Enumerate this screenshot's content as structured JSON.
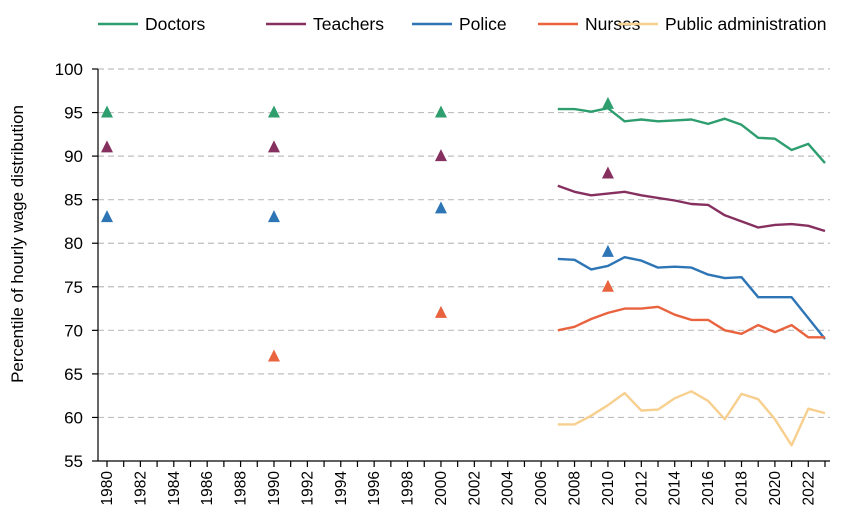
{
  "chart_data": {
    "type": "line",
    "title": "",
    "xlabel": "",
    "ylabel": "Percentile of hourly wage distribution",
    "xlim": [
      1980,
      2023
    ],
    "ylim": [
      55,
      100
    ],
    "y_ticks": [
      55,
      60,
      65,
      70,
      75,
      80,
      85,
      90,
      95,
      100
    ],
    "x_ticks": [
      1980,
      1982,
      1984,
      1986,
      1988,
      1990,
      1992,
      1994,
      1996,
      1998,
      2000,
      2002,
      2004,
      2006,
      2008,
      2010,
      2012,
      2014,
      2016,
      2018,
      2020,
      2022
    ],
    "grid": "horizontal dashed",
    "legend_position": "top",
    "series": [
      {
        "name": "Doctors",
        "color": "#2e9e6f",
        "x": [
          2007,
          2008,
          2009,
          2010,
          2011,
          2012,
          2013,
          2014,
          2015,
          2016,
          2017,
          2018,
          2019,
          2020,
          2021,
          2022,
          2023
        ],
        "y": [
          95.4,
          95.4,
          95.1,
          95.5,
          94.0,
          94.2,
          94.0,
          94.1,
          94.2,
          93.7,
          94.3,
          93.6,
          92.1,
          92.0,
          90.7,
          91.4,
          89.2
        ],
        "markers": [
          {
            "x": 1980,
            "y": 95
          },
          {
            "x": 1990,
            "y": 95
          },
          {
            "x": 2000,
            "y": 95
          },
          {
            "x": 2010,
            "y": 96
          }
        ]
      },
      {
        "name": "Teachers",
        "color": "#86305f",
        "x": [
          2007,
          2008,
          2009,
          2010,
          2011,
          2012,
          2013,
          2014,
          2015,
          2016,
          2017,
          2018,
          2019,
          2020,
          2021,
          2022,
          2023
        ],
        "y": [
          86.6,
          85.9,
          85.5,
          85.7,
          85.9,
          85.5,
          85.2,
          84.9,
          84.5,
          84.4,
          83.2,
          82.5,
          81.8,
          82.1,
          82.2,
          82.0,
          81.4
        ],
        "markers": [
          {
            "x": 1980,
            "y": 91
          },
          {
            "x": 1990,
            "y": 91
          },
          {
            "x": 2000,
            "y": 90
          },
          {
            "x": 2010,
            "y": 88
          }
        ]
      },
      {
        "name": "Police",
        "color": "#2e75b6",
        "x": [
          2007,
          2008,
          2009,
          2010,
          2011,
          2012,
          2013,
          2014,
          2015,
          2016,
          2017,
          2018,
          2019,
          2020,
          2021,
          2022,
          2023
        ],
        "y": [
          78.2,
          78.1,
          77.0,
          77.4,
          78.4,
          78.0,
          77.2,
          77.3,
          77.2,
          76.4,
          76.0,
          76.1,
          73.8,
          73.8,
          73.8,
          71.4,
          69.0
        ],
        "markers": [
          {
            "x": 1980,
            "y": 83
          },
          {
            "x": 1990,
            "y": 83
          },
          {
            "x": 2000,
            "y": 84
          },
          {
            "x": 2010,
            "y": 79
          }
        ]
      },
      {
        "name": "Nurses",
        "color": "#e9633f",
        "x": [
          2007,
          2008,
          2009,
          2010,
          2011,
          2012,
          2013,
          2014,
          2015,
          2016,
          2017,
          2018,
          2019,
          2020,
          2021,
          2022,
          2023
        ],
        "y": [
          70.0,
          70.4,
          71.3,
          72.0,
          72.5,
          72.5,
          72.7,
          71.8,
          71.2,
          71.2,
          70.0,
          69.6,
          70.6,
          69.8,
          70.6,
          69.2,
          69.2
        ],
        "markers": [
          {
            "x": 1990,
            "y": 67
          },
          {
            "x": 2000,
            "y": 72
          },
          {
            "x": 2010,
            "y": 75
          }
        ]
      },
      {
        "name": "Public administration",
        "color": "#f7cf8f",
        "x": [
          2007,
          2008,
          2009,
          2010,
          2011,
          2012,
          2013,
          2014,
          2015,
          2016,
          2017,
          2018,
          2019,
          2020,
          2021,
          2022,
          2023
        ],
        "y": [
          59.2,
          59.2,
          60.2,
          61.4,
          62.8,
          60.8,
          60.9,
          62.2,
          63.0,
          61.9,
          59.8,
          62.7,
          62.1,
          59.8,
          56.8,
          61.0,
          60.5
        ],
        "markers": []
      }
    ]
  }
}
